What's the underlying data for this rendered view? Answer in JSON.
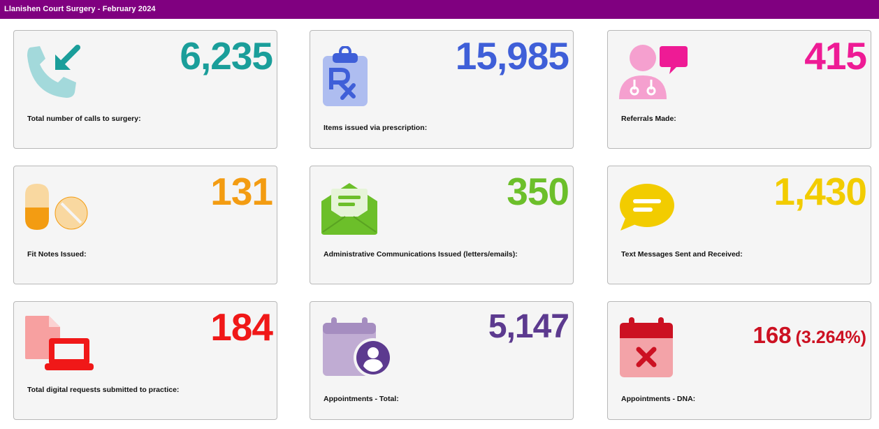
{
  "header": {
    "title": "Llanishen Court Surgery - February 2024",
    "color": "#800080"
  },
  "cards": [
    {
      "value": "6,235",
      "label": "Total number of calls to surgery:",
      "icon": "incoming-call-icon",
      "color": "#1a9e9a"
    },
    {
      "value": "15,985",
      "label": "Items issued via prescription:",
      "icon": "prescription-clipboard-icon",
      "color": "#3f5fd8"
    },
    {
      "value": "415",
      "label": "Referrals Made:",
      "icon": "doctor-speech-icon",
      "color": "#ee1b95"
    },
    {
      "value": "131",
      "label": "Fit Notes Issued:",
      "icon": "pills-icon",
      "color": "#f39c12"
    },
    {
      "value": "350",
      "label": "Administrative Communications Issued (letters/emails):",
      "icon": "open-envelope-icon",
      "color": "#6cbf2a"
    },
    {
      "value": "1,430",
      "label": "Text Messages Sent and Received:",
      "icon": "speech-bubble-icon",
      "color": "#f2cc00"
    },
    {
      "value": "184",
      "label": "Total digital requests submitted to practice:",
      "icon": "document-laptop-icon",
      "color": "#f01818"
    },
    {
      "value": "5,147",
      "label": "Appointments - Total:",
      "icon": "calendar-user-icon",
      "color": "#5c3a8f"
    },
    {
      "value": "168",
      "value_pct": "(3.264%)",
      "label": "Appointments - DNA:",
      "icon": "calendar-cancel-icon",
      "color": "#cc1122"
    }
  ]
}
